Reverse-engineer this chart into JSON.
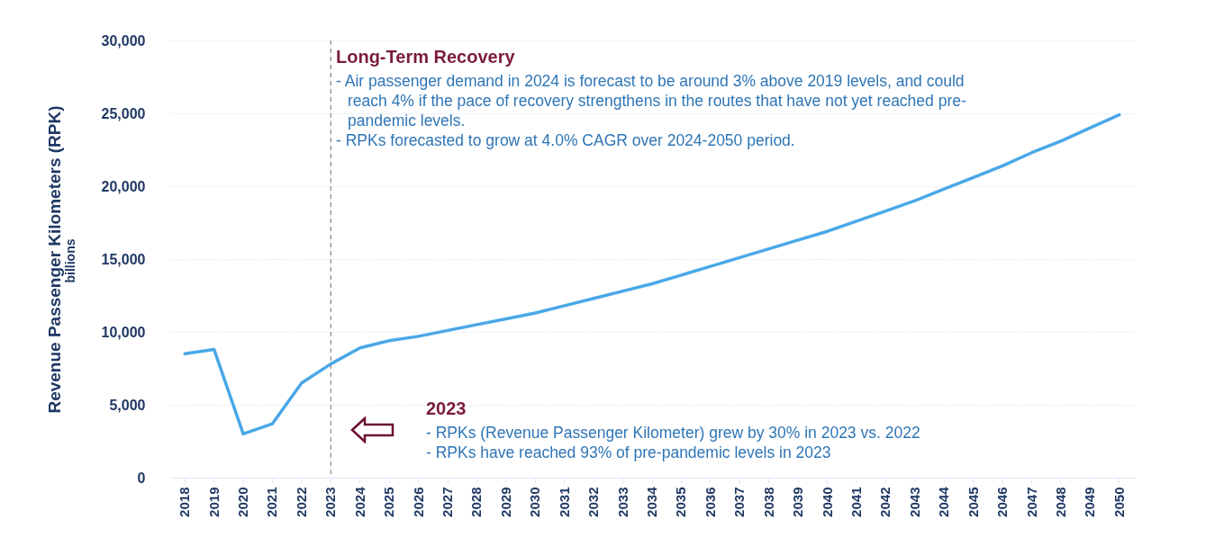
{
  "chart_data": {
    "type": "line",
    "ylabel": "Revenue Passenger Kilometers (RPK)",
    "categories": [
      "2018",
      "2019",
      "2020",
      "2021",
      "2022",
      "2023",
      "2024",
      "2025",
      "2026",
      "2027",
      "2028",
      "2029",
      "2030",
      "2031",
      "2032",
      "2033",
      "2034",
      "2035",
      "2036",
      "2037",
      "2038",
      "2039",
      "2040",
      "2041",
      "2042",
      "2043",
      "2044",
      "2045",
      "2046",
      "2047",
      "2048",
      "2049",
      "2050"
    ],
    "series": [
      {
        "color": "#4aa8e8",
        "values": [
          8500,
          8800,
          3000,
          3700,
          6500,
          7800,
          8900,
          9400,
          9700,
          10100,
          10500,
          10900,
          11300,
          11800,
          12300,
          12800,
          13300,
          13900,
          14500,
          15100,
          15700,
          16300,
          16900,
          17600,
          18300,
          19000,
          19800,
          20600,
          21400,
          22300,
          23100,
          24000,
          24900
        ]
      }
    ],
    "ylim": [
      0,
      30000
    ],
    "yticks": [
      0,
      {
        "value": 5000,
        "label": "5,000"
      },
      {
        "value": 10000,
        "label": "10,000"
      },
      {
        "value": 15000,
        "label": "15,000"
      },
      {
        "value": 20000,
        "label": "20,000"
      },
      {
        "value": 25000,
        "label": "25,000"
      },
      {
        "value": 30000,
        "label": "30,000"
      }
    ],
    "grid": "y",
    "marker": "none",
    "line_style": "solid",
    "ref_lines": [
      {
        "axis": "x",
        "value": "2023",
        "color": "#888888",
        "line_style": "dashed"
      }
    ],
    "annotations": [
      "Long-Term Recovery",
      "- Air passenger demand in 2024 is forecast to be around 3% above 2019 levels, and could reach 4% if the pace of recovery strengthens in the routes that have not yet reached pre-pandemic levels.",
      "- RPKs forecasted to grow at 4.0% CAGR over 2024-2050 period.",
      "2023",
      "- RPKs (Revenue Passenger Kilometer) grew by 30% in 2023 vs. 2022",
      "- RPKs have reached 93% of pre-pandemic levels in 2023",
      "billions"
    ]
  }
}
